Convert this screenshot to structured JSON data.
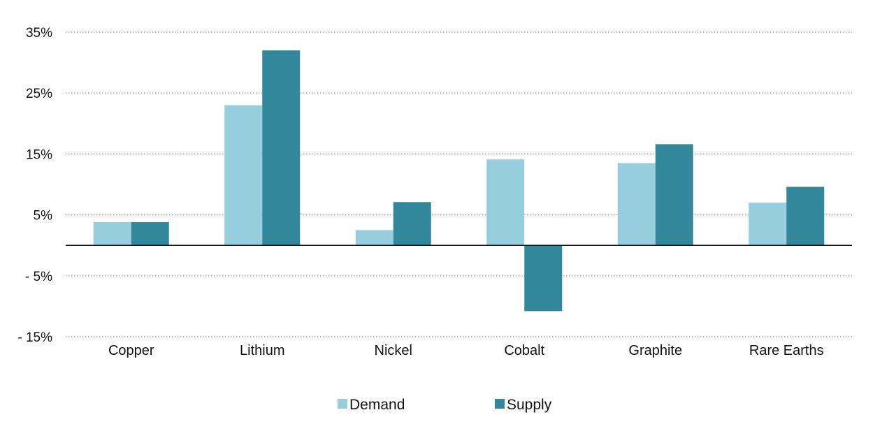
{
  "chart_data": {
    "type": "bar",
    "categories": [
      "Copper",
      "Lithium",
      "Nickel",
      "Cobalt",
      "Graphite",
      "Rare Earths"
    ],
    "series": [
      {
        "name": "Demand",
        "color": "#96cedd",
        "values": [
          3.8,
          23,
          2.5,
          14.1,
          13.5,
          7
        ]
      },
      {
        "name": "Supply",
        "color": "#32879a",
        "values": [
          3.8,
          32,
          7.1,
          -10.8,
          16.6,
          9.6
        ]
      }
    ],
    "yticks": [
      35,
      25,
      15,
      5,
      -5,
      -15
    ],
    "ytick_labels": [
      "35%",
      "25%",
      "15%",
      "5%",
      "- 5%",
      "- 15%"
    ],
    "ylim": [
      -15,
      35
    ],
    "grid": "horizontal-dotted",
    "legend_position": "bottom-center",
    "title": "",
    "xlabel": "",
    "ylabel": ""
  }
}
